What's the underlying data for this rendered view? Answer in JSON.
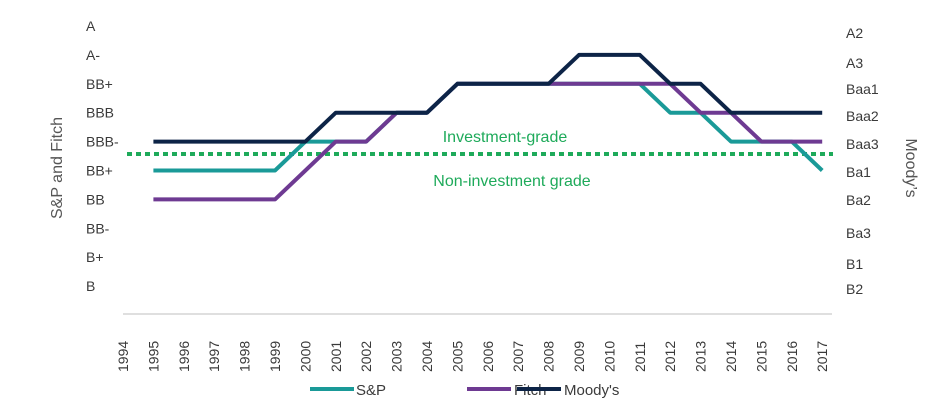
{
  "chart_data": {
    "type": "line",
    "x": [
      "1994",
      "1995",
      "1996",
      "1997",
      "1998",
      "1999",
      "2000",
      "2001",
      "2002",
      "2003",
      "2004",
      "2005",
      "2006",
      "2007",
      "2008",
      "2009",
      "2010",
      "2011",
      "2012",
      "2013",
      "2014",
      "2015",
      "2016",
      "2017"
    ],
    "left_axis": {
      "label": "S&P and Fitch",
      "ticks": [
        "A",
        "A-",
        "BB+",
        "BBB",
        "BBB-",
        "BB+",
        "BB",
        "BB-",
        "B+",
        "B"
      ]
    },
    "right_axis": {
      "label": "Moody’s",
      "ticks": [
        "A2",
        "A3",
        "Baa1",
        "Baa2",
        "Baa3",
        "Ba1",
        "Ba2",
        "Ba3",
        "B1",
        "B2"
      ]
    },
    "series": [
      {
        "name": "S&P",
        "color": "#1a9a98",
        "values": [
          null,
          5,
          5,
          5,
          5,
          5,
          4,
          4,
          4,
          3,
          3,
          2,
          2,
          2,
          2,
          2,
          2,
          2,
          3,
          3,
          4,
          4,
          4,
          5
        ]
      },
      {
        "name": "Fitch",
        "color": "#6e3a92",
        "values": [
          null,
          6,
          6,
          6,
          6,
          6,
          5,
          4,
          4,
          3,
          3,
          2,
          2,
          2,
          2,
          2,
          2,
          2,
          2,
          3,
          3,
          4,
          4,
          4
        ]
      },
      {
        "name": "Moody's",
        "color": "#0d2447",
        "values": [
          null,
          4,
          4,
          4,
          4,
          4,
          4,
          3,
          3,
          3,
          3,
          2,
          2,
          2,
          2,
          1,
          1,
          1,
          2,
          2,
          3,
          3,
          3,
          3
        ]
      }
    ],
    "threshold": {
      "level": 4.5,
      "color": "#1eaa5a",
      "label_above": "Investment-grade",
      "label_below": "Non-investment grade"
    },
    "legend_position": "bottom",
    "grid": false
  }
}
